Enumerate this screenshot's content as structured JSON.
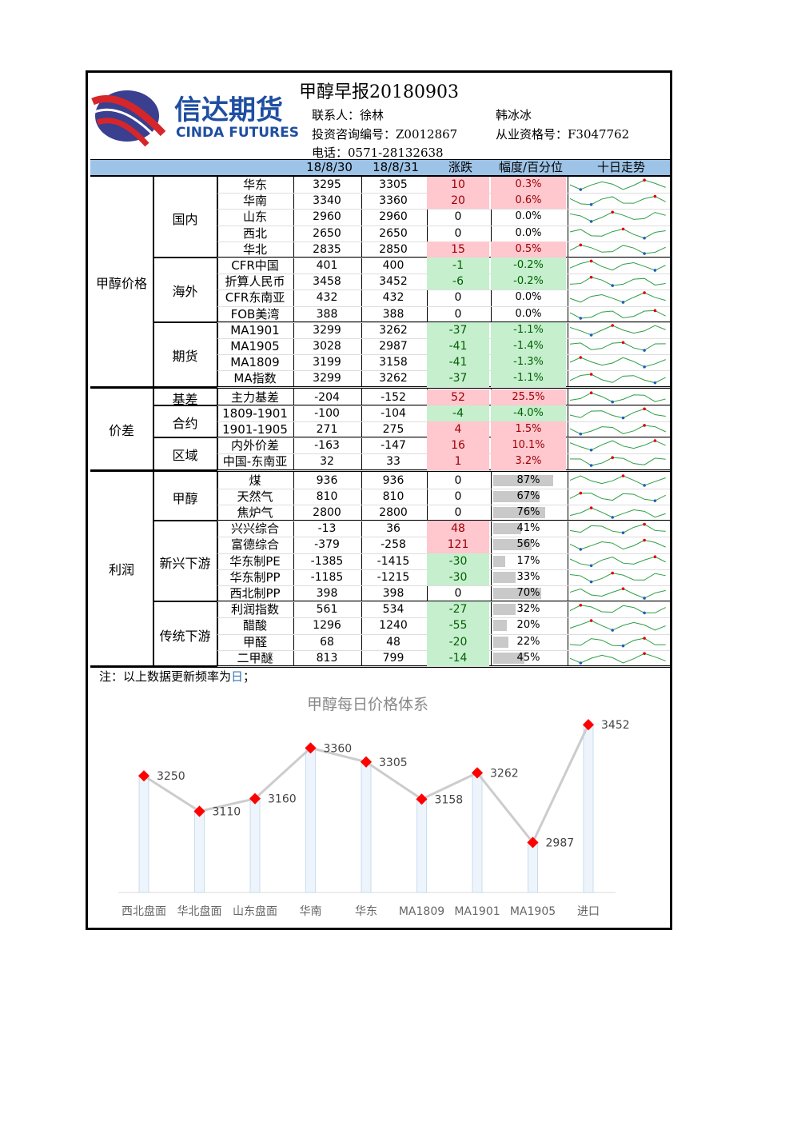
{
  "header": {
    "title": "甲醇早报20180903",
    "contact": "联系人：徐林",
    "contact2": "韩冰冰",
    "license1": "投资咨询编号：Z0012867",
    "license2": "从业资格号：F3047762",
    "phone": "电话：0571-28132638",
    "brand_cn": "信达期货",
    "brand_en": "CINDA FUTURES"
  },
  "columns": [
    "18/8/30",
    "18/8/31",
    "涨跌",
    "幅度/百分位",
    "十日走势"
  ],
  "sections": {
    "price": "甲醇价格",
    "spread": "价差",
    "profit": "利润"
  },
  "groups": {
    "domestic": "国内",
    "overseas": "海外",
    "futures": "期货",
    "basis": "基差",
    "contract": "合约",
    "region": "区域",
    "methanol": "甲醇",
    "emerging": "新兴下游",
    "traditional": "传统下游"
  },
  "rows": [
    {
      "name": "华东",
      "a": "3295",
      "b": "3305",
      "d": "10",
      "p": "0.3%",
      "s": "pos"
    },
    {
      "name": "华南",
      "a": "3340",
      "b": "3360",
      "d": "20",
      "p": "0.6%",
      "s": "pos"
    },
    {
      "name": "山东",
      "a": "2960",
      "b": "2960",
      "d": "0",
      "p": "0.0%",
      "s": ""
    },
    {
      "name": "西北",
      "a": "2650",
      "b": "2650",
      "d": "0",
      "p": "0.0%",
      "s": ""
    },
    {
      "name": "华北",
      "a": "2835",
      "b": "2850",
      "d": "15",
      "p": "0.5%",
      "s": "pos"
    },
    {
      "name": "CFR中国",
      "a": "401",
      "b": "400",
      "d": "-1",
      "p": "-0.2%",
      "s": "neg"
    },
    {
      "name": "折算人民币",
      "a": "3458",
      "b": "3452",
      "d": "-6",
      "p": "-0.2%",
      "s": "neg"
    },
    {
      "name": "CFR东南亚",
      "a": "432",
      "b": "432",
      "d": "0",
      "p": "0.0%",
      "s": ""
    },
    {
      "name": "FOB美湾",
      "a": "388",
      "b": "388",
      "d": "0",
      "p": "0.0%",
      "s": ""
    },
    {
      "name": "MA1901",
      "a": "3299",
      "b": "3262",
      "d": "-37",
      "p": "-1.1%",
      "s": "neg"
    },
    {
      "name": "MA1905",
      "a": "3028",
      "b": "2987",
      "d": "-41",
      "p": "-1.4%",
      "s": "neg"
    },
    {
      "name": "MA1809",
      "a": "3199",
      "b": "3158",
      "d": "-41",
      "p": "-1.3%",
      "s": "neg"
    },
    {
      "name": "MA指数",
      "a": "3299",
      "b": "3262",
      "d": "-37",
      "p": "-1.1%",
      "s": "neg"
    },
    {
      "name": "主力基差",
      "a": "-204",
      "b": "-152",
      "d": "52",
      "p": "25.5%",
      "s": "pos"
    },
    {
      "name": "1809-1901",
      "a": "-100",
      "b": "-104",
      "d": "-4",
      "p": "-4.0%",
      "s": "neg"
    },
    {
      "name": "1901-1905",
      "a": "271",
      "b": "275",
      "d": "4",
      "p": "1.5%",
      "s": "pos"
    },
    {
      "name": "内外价差",
      "a": "-163",
      "b": "-147",
      "d": "16",
      "p": "10.1%",
      "s": "pos"
    },
    {
      "name": "中国-东南亚",
      "a": "32",
      "b": "33",
      "d": "1",
      "p": "3.2%",
      "s": "pos"
    },
    {
      "name": "煤",
      "a": "936",
      "b": "936",
      "d": "0",
      "p": "87%",
      "s": "",
      "bar": 0.87
    },
    {
      "name": "天然气",
      "a": "810",
      "b": "810",
      "d": "0",
      "p": "67%",
      "s": "",
      "bar": 0.67
    },
    {
      "name": "焦炉气",
      "a": "2800",
      "b": "2800",
      "d": "0",
      "p": "76%",
      "s": "",
      "bar": 0.76
    },
    {
      "name": "兴兴综合",
      "a": "-13",
      "b": "36",
      "d": "48",
      "p": "41%",
      "s": "pos",
      "bar": 0.41
    },
    {
      "name": "富德综合",
      "a": "-379",
      "b": "-258",
      "d": "121",
      "p": "56%",
      "s": "pos",
      "bar": 0.56
    },
    {
      "name": "华东制PE",
      "a": "-1385",
      "b": "-1415",
      "d": "-30",
      "p": "17%",
      "s": "neg",
      "bar": 0.17
    },
    {
      "name": "华东制PP",
      "a": "-1185",
      "b": "-1215",
      "d": "-30",
      "p": "33%",
      "s": "neg",
      "bar": 0.33
    },
    {
      "name": "西北制PP",
      "a": "398",
      "b": "398",
      "d": "0",
      "p": "70%",
      "s": "",
      "bar": 0.7
    },
    {
      "name": "利润指数",
      "a": "561",
      "b": "534",
      "d": "-27",
      "p": "32%",
      "s": "neg",
      "bar": 0.32
    },
    {
      "name": "醋酸",
      "a": "1296",
      "b": "1240",
      "d": "-55",
      "p": "20%",
      "s": "neg",
      "bar": 0.2
    },
    {
      "name": "甲醛",
      "a": "68",
      "b": "48",
      "d": "-20",
      "p": "22%",
      "s": "neg",
      "bar": 0.22
    },
    {
      "name": "二甲醚",
      "a": "813",
      "b": "799",
      "d": "-14",
      "p": "45%",
      "s": "neg",
      "bar": 0.45
    }
  ],
  "note_prefix": "注：以上数据更新频率为",
  "note_freq": "日",
  "note_suffix": "；",
  "chart_data": {
    "type": "line",
    "title": "甲醇每日价格体系",
    "categories": [
      "西北盘面",
      "华北盘面",
      "山东盘面",
      "华南",
      "华东",
      "MA1809",
      "MA1901",
      "MA1905",
      "进口"
    ],
    "values": [
      3250,
      3110,
      3160,
      3360,
      3305,
      3158,
      3262,
      2987,
      3452
    ],
    "line_color": "#cccccc",
    "marker_color": "#ff0000"
  }
}
